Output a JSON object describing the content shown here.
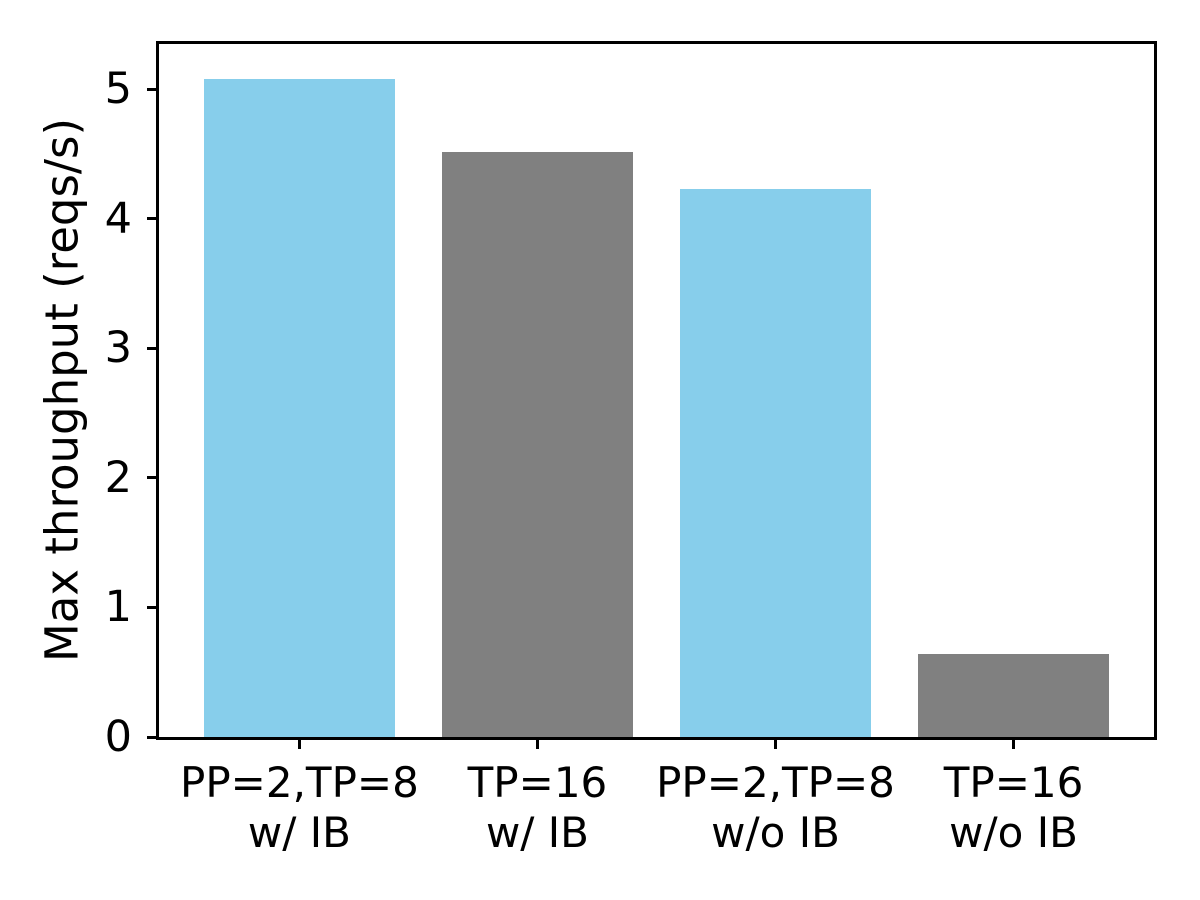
{
  "chart_data": {
    "type": "bar",
    "title": "",
    "xlabel": "",
    "ylabel": "Max throughput (reqs/s)",
    "categories": [
      "PP=2,TP=8\nw/ IB",
      "TP=16\nw/ IB",
      "PP=2,TP=8\nw/o IB",
      "TP=16\nw/o IB"
    ],
    "values": [
      5.08,
      4.52,
      4.23,
      0.64
    ],
    "bar_colors": [
      "#87CEEB",
      "#808080",
      "#87CEEB",
      "#808080"
    ],
    "x_positions": [
      0,
      1,
      2,
      3
    ],
    "bar_width_units": 0.8,
    "xlim": [
      -0.59,
      3.59
    ],
    "ylim": [
      0,
      5.35
    ],
    "yticks": [
      "0",
      "1",
      "2",
      "3",
      "4",
      "5"
    ],
    "ytick_values": [
      0,
      1,
      2,
      3,
      4,
      5
    ],
    "grid": false,
    "legend": "none",
    "axis_color": "#000000",
    "background_color": "#ffffff"
  }
}
